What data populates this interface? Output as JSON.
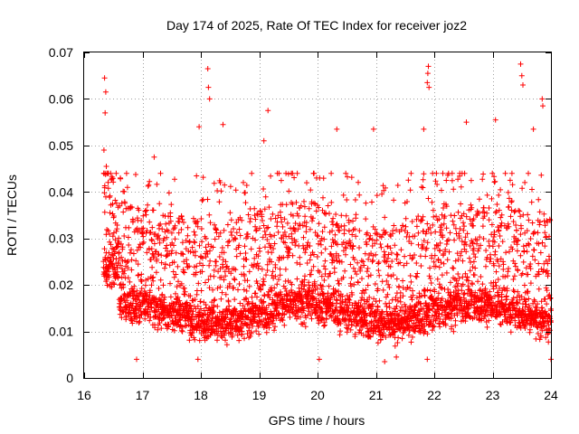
{
  "chart_data": {
    "type": "scatter",
    "title": "Day 174 of 2025, Rate Of TEC Index for receiver joz2",
    "xlabel": "GPS time / hours",
    "ylabel": "ROTI / TECUs",
    "xlim": [
      16,
      24
    ],
    "ylim": [
      0,
      0.07
    ],
    "x_ticks": [
      16,
      17,
      18,
      19,
      20,
      21,
      22,
      23,
      24
    ],
    "x_tick_labels": [
      "16",
      "17",
      "18",
      "19",
      "20",
      "21",
      "22",
      "23",
      "24"
    ],
    "y_ticks": [
      0,
      0.01,
      0.02,
      0.03,
      0.04,
      0.05,
      0.06,
      0.07
    ],
    "y_tick_labels": [
      "0",
      "0.01",
      "0.02",
      "0.03",
      "0.04",
      "0.05",
      "0.06",
      "0.07"
    ],
    "grid": true,
    "marker": "plus",
    "color": "#ff0000",
    "series": [
      {
        "name": "ROTI",
        "x_range": [
          16.33,
          24.0
        ],
        "bulk_range": [
          0.005,
          0.04
        ],
        "typical_value": 0.014,
        "highlights": [
          {
            "x": 16.35,
            "y": 0.0645
          },
          {
            "x": 16.37,
            "y": 0.0615
          },
          {
            "x": 16.36,
            "y": 0.057
          },
          {
            "x": 16.34,
            "y": 0.049
          },
          {
            "x": 16.38,
            "y": 0.0455
          },
          {
            "x": 16.62,
            "y": 0.043
          },
          {
            "x": 17.2,
            "y": 0.0475
          },
          {
            "x": 18.12,
            "y": 0.0665
          },
          {
            "x": 18.13,
            "y": 0.0625
          },
          {
            "x": 18.15,
            "y": 0.06
          },
          {
            "x": 18.38,
            "y": 0.0545
          },
          {
            "x": 17.97,
            "y": 0.054
          },
          {
            "x": 19.15,
            "y": 0.0575
          },
          {
            "x": 19.08,
            "y": 0.051
          },
          {
            "x": 20.33,
            "y": 0.0535
          },
          {
            "x": 20.96,
            "y": 0.0535
          },
          {
            "x": 21.82,
            "y": 0.0535
          },
          {
            "x": 21.9,
            "y": 0.067
          },
          {
            "x": 21.89,
            "y": 0.0655
          },
          {
            "x": 21.88,
            "y": 0.0635
          },
          {
            "x": 21.91,
            "y": 0.0625
          },
          {
            "x": 22.55,
            "y": 0.055
          },
          {
            "x": 23.05,
            "y": 0.0555
          },
          {
            "x": 23.48,
            "y": 0.0675
          },
          {
            "x": 23.5,
            "y": 0.065
          },
          {
            "x": 23.52,
            "y": 0.063
          },
          {
            "x": 23.85,
            "y": 0.06
          },
          {
            "x": 23.86,
            "y": 0.0585
          },
          {
            "x": 23.7,
            "y": 0.0535
          },
          {
            "x": 16.9,
            "y": 0.004
          },
          {
            "x": 17.95,
            "y": 0.004
          },
          {
            "x": 20.03,
            "y": 0.004
          },
          {
            "x": 21.15,
            "y": 0.0035
          },
          {
            "x": 21.35,
            "y": 0.0045
          },
          {
            "x": 21.88,
            "y": 0.004
          },
          {
            "x": 24.0,
            "y": 0.004
          }
        ]
      }
    ]
  }
}
